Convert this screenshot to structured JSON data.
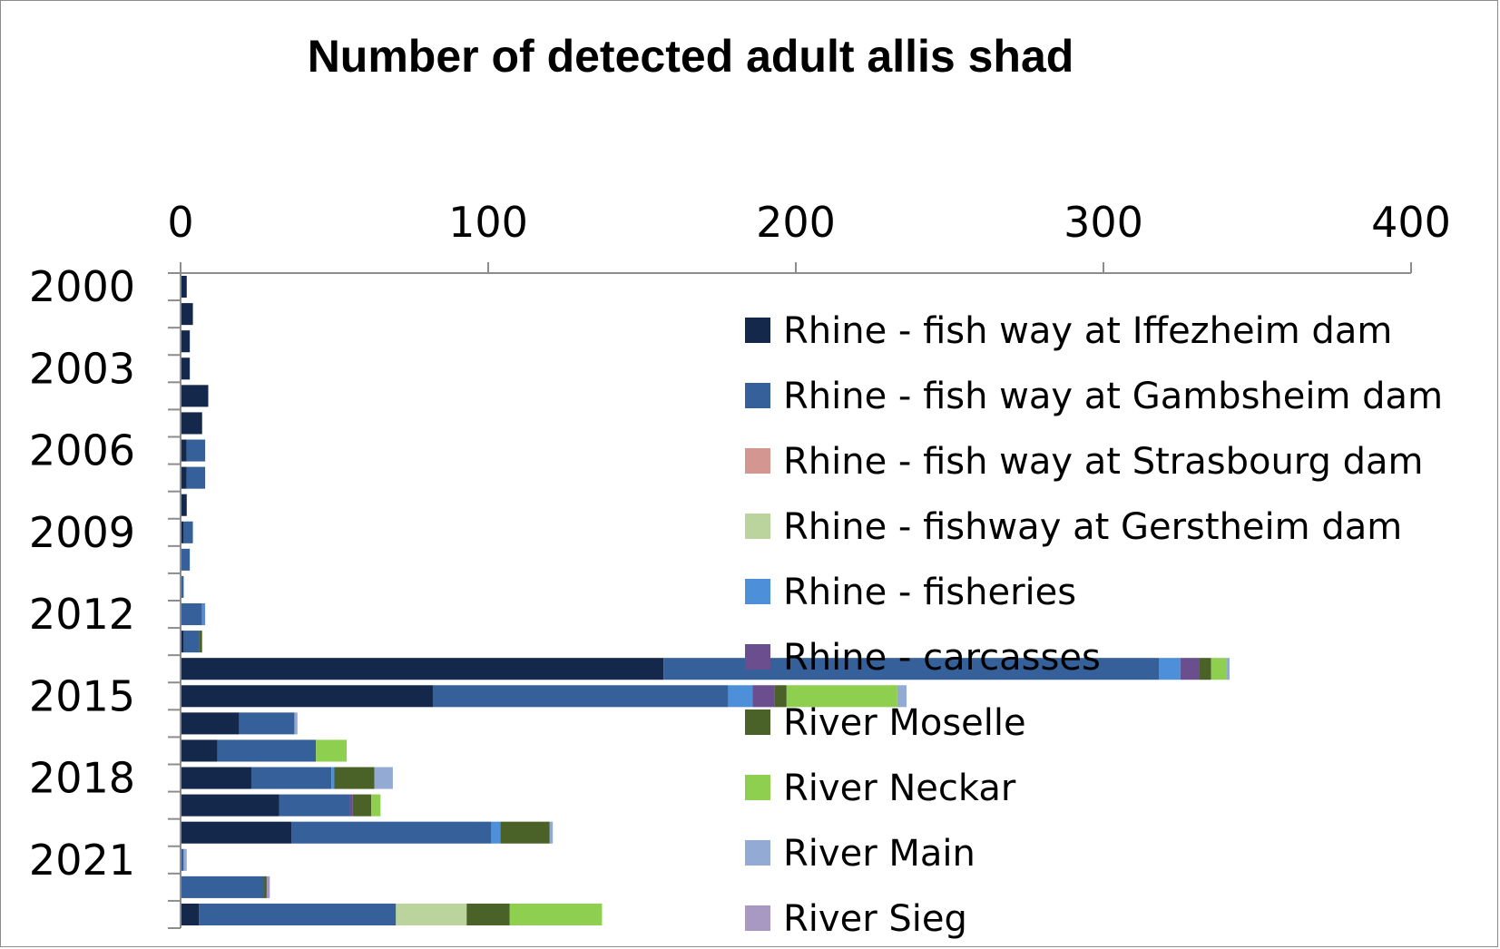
{
  "chart_data": {
    "type": "bar",
    "orientation": "horizontal",
    "stacked": true,
    "title": "Number of detected adult allis shad",
    "xlabel": "",
    "ylabel": "",
    "xlim": [
      0,
      400
    ],
    "x_ticks": [
      "0",
      "100",
      "200",
      "300",
      "400"
    ],
    "categories": [
      "2000",
      "2001",
      "2002",
      "2003",
      "2004",
      "2005",
      "2006",
      "2007",
      "2008",
      "2009",
      "2010",
      "2011",
      "2012",
      "2013",
      "2014",
      "2015",
      "2016",
      "2017",
      "2018",
      "2019",
      "2020",
      "2021",
      "2022",
      "2023"
    ],
    "y_tick_labels": [
      "2000",
      "2003",
      "2006",
      "2009",
      "2012",
      "2015",
      "2018",
      "2021"
    ],
    "legend_position": "right",
    "grid": false,
    "series": [
      {
        "name": "Rhine - fish way at Iffezheim dam",
        "color": "#13284A",
        "values": [
          2,
          4,
          3,
          3,
          9,
          7,
          2,
          2,
          2,
          1,
          0,
          0,
          0,
          1,
          157,
          82,
          19,
          12,
          23,
          32,
          36,
          0,
          0,
          6
        ]
      },
      {
        "name": "Rhine - fish way at Gambsheim dam",
        "color": "#35609A",
        "values": [
          0,
          0,
          0,
          0,
          0,
          0,
          6,
          6,
          0,
          3,
          3,
          1,
          7,
          5,
          161,
          96,
          18,
          32,
          26,
          23,
          65,
          1,
          27,
          64
        ]
      },
      {
        "name": "Rhine - fish way at Strasbourg dam",
        "color": "#D49690",
        "values": [
          0,
          0,
          0,
          0,
          0,
          0,
          0,
          0,
          0,
          0,
          0,
          0,
          0,
          0,
          0,
          0,
          0,
          0,
          0,
          0,
          0,
          0,
          0,
          0
        ]
      },
      {
        "name": "Rhine - fishway at Gerstheim dam",
        "color": "#BBD39D",
        "values": [
          0,
          0,
          0,
          0,
          0,
          0,
          0,
          0,
          0,
          0,
          0,
          0,
          0,
          0,
          0,
          0,
          0,
          0,
          0,
          0,
          0,
          0,
          0,
          23
        ]
      },
      {
        "name": "Rhine - fisheries",
        "color": "#4D8FD8",
        "values": [
          0,
          0,
          0,
          0,
          0,
          0,
          0,
          0,
          0,
          0,
          0,
          0,
          1,
          0,
          7,
          8,
          0,
          0,
          1,
          0,
          3,
          0,
          0,
          0
        ]
      },
      {
        "name": "Rhine -  carcasses",
        "color": "#6A4E8E",
        "values": [
          0,
          0,
          0,
          0,
          0,
          0,
          0,
          0,
          0,
          0,
          0,
          0,
          0,
          0,
          6,
          7,
          0,
          0,
          0,
          1,
          0,
          0,
          0,
          0
        ]
      },
      {
        "name": "River Moselle",
        "color": "#4A6128",
        "values": [
          0,
          0,
          0,
          0,
          0,
          0,
          0,
          0,
          0,
          0,
          0,
          0,
          0,
          1,
          4,
          4,
          0,
          0,
          13,
          6,
          16,
          0,
          1,
          14
        ]
      },
      {
        "name": "River Neckar",
        "color": "#8ECF4F",
        "values": [
          0,
          0,
          0,
          0,
          0,
          0,
          0,
          0,
          0,
          0,
          0,
          0,
          0,
          0,
          5,
          36,
          0,
          10,
          0,
          3,
          0,
          0,
          0,
          30
        ]
      },
      {
        "name": "River Main",
        "color": "#93ABD4",
        "values": [
          0,
          0,
          0,
          0,
          0,
          0,
          0,
          0,
          0,
          0,
          0,
          0,
          0,
          0,
          1,
          3,
          1,
          0,
          6,
          0,
          1,
          1,
          0,
          0
        ]
      },
      {
        "name": "River Sieg",
        "color": "#A899C2",
        "values": [
          0,
          0,
          0,
          0,
          0,
          0,
          0,
          0,
          0,
          0,
          0,
          0,
          0,
          0,
          0,
          0,
          0,
          0,
          0,
          0,
          0,
          0,
          1,
          0
        ]
      }
    ]
  }
}
